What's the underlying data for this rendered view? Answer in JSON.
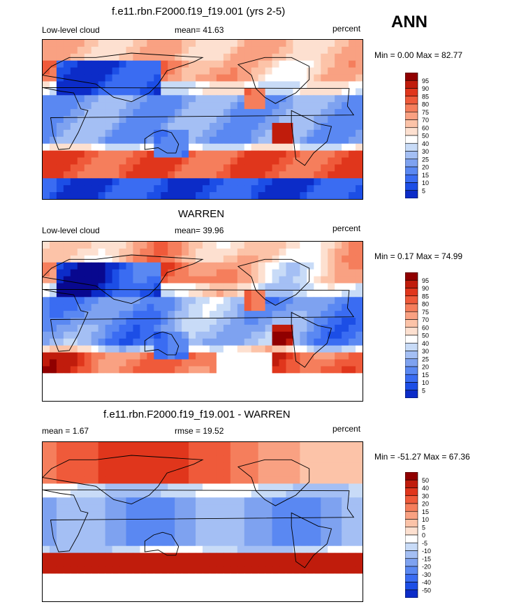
{
  "season": "ANN",
  "colors": {
    "levels": [
      "#08088f",
      "#0c2cc8",
      "#1c4ee6",
      "#3a6cf2",
      "#5a88f2",
      "#7ea2f0",
      "#a4bff4",
      "#c8dbf7",
      "#ffffff",
      "#fde0d0",
      "#fcc3a8",
      "#f9a182",
      "#f57e5c",
      "#ef5a3a",
      "#e0361c",
      "#c01c0c",
      "#900000"
    ]
  },
  "panels": [
    {
      "title": "f.e11.rbn.F2000.f19_f19.001 (yrs 2-5)",
      "left": "Low-level cloud",
      "center": "mean=  41.63",
      "right": "percent",
      "minmax": "Min =   0.00 Max =  82.77",
      "colorbar_labels": [
        "95",
        "90",
        "85",
        "80",
        "75",
        "70",
        "60",
        "50",
        "40",
        "30",
        "25",
        "20",
        "15",
        "10",
        "5"
      ]
    },
    {
      "title": "WARREN",
      "left": "Low-level cloud",
      "center": "mean=  39.96",
      "right": "percent",
      "minmax": "Min =   0.17 Max =  74.99",
      "colorbar_labels": [
        "95",
        "90",
        "85",
        "80",
        "75",
        "70",
        "60",
        "50",
        "40",
        "30",
        "25",
        "20",
        "15",
        "10",
        "5"
      ]
    },
    {
      "title": "f.e11.rbn.F2000.f19_f19.001 - WARREN",
      "left": "mean =   1.67",
      "center": "rmse =  19.52",
      "right": "percent",
      "minmax": "Min = -51.27 Max =  67.36",
      "colorbar_labels": [
        "50",
        "40",
        "30",
        "20",
        "15",
        "10",
        "5",
        "0",
        "-5",
        "-10",
        "-15",
        "-20",
        "-30",
        "-40",
        "-50"
      ]
    }
  ],
  "chart_data": [
    {
      "type": "heatmap",
      "title": "f.e11.rbn.F2000.f19_f19.001 (yrs 2-5)",
      "field": "Low-level cloud",
      "units": "percent",
      "mean": 41.63,
      "min": 0.0,
      "max": 82.77,
      "levels": [
        5,
        10,
        15,
        20,
        25,
        30,
        40,
        50,
        60,
        70,
        75,
        80,
        85,
        90,
        95
      ]
    },
    {
      "type": "heatmap",
      "title": "WARREN",
      "field": "Low-level cloud",
      "units": "percent",
      "mean": 39.96,
      "min": 0.17,
      "max": 74.99,
      "levels": [
        5,
        10,
        15,
        20,
        25,
        30,
        40,
        50,
        60,
        70,
        75,
        80,
        85,
        90,
        95
      ]
    },
    {
      "type": "heatmap",
      "title": "f.e11.rbn.F2000.f19_f19.001 - WARREN",
      "units": "percent",
      "mean": 1.67,
      "rmse": 19.52,
      "min": -51.27,
      "max": 67.36,
      "levels": [
        -50,
        -40,
        -30,
        -20,
        -15,
        -10,
        -5,
        0,
        5,
        10,
        15,
        20,
        30,
        40,
        50
      ]
    }
  ]
}
